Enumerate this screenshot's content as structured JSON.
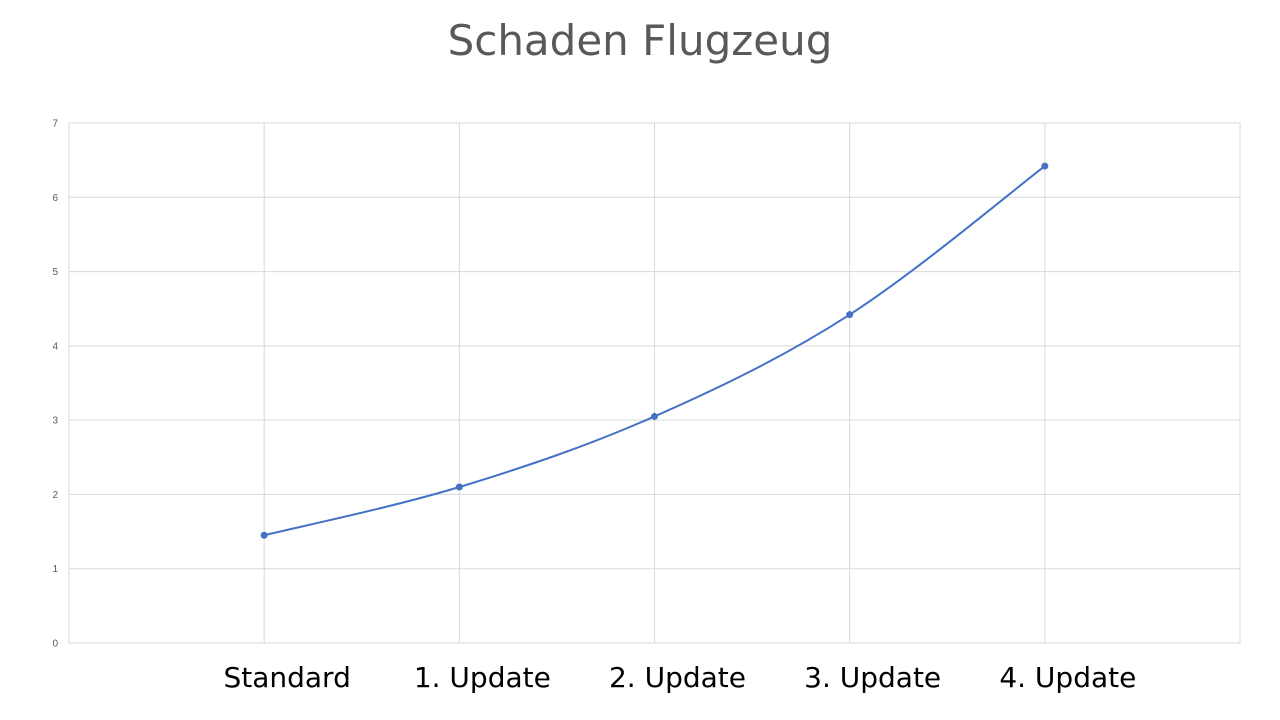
{
  "chart_data": {
    "type": "line",
    "title": "Schaden Flugzeug",
    "xlabel": "",
    "ylabel": "",
    "categories": [
      "Standard",
      "1. Update",
      "2. Update",
      "3. Update",
      "4. Update"
    ],
    "series": [
      {
        "values": [
          1.45,
          2.1,
          3.05,
          4.42,
          6.42
        ],
        "color": "#4472c4"
      }
    ],
    "ylim": [
      0,
      7
    ],
    "yticks": [
      "0",
      "1",
      "2",
      "3",
      "4",
      "5",
      "6",
      "7"
    ],
    "grid": true,
    "smooth": true,
    "legend": "none"
  }
}
